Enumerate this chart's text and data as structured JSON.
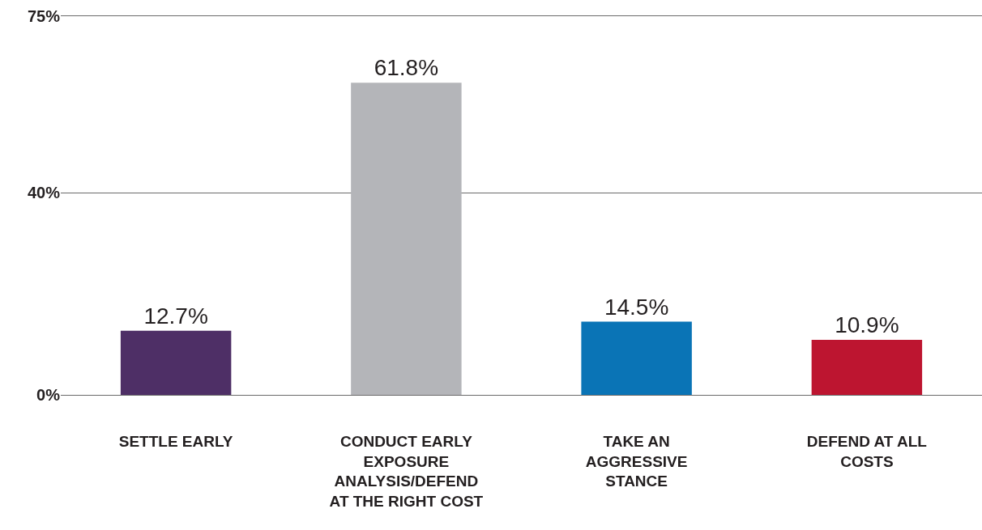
{
  "chart_data": {
    "type": "bar",
    "categories": [
      "SETTLE EARLY",
      "CONDUCT EARLY EXPOSURE ANALYSIS/DEFEND AT THE RIGHT COST",
      "TAKE AN AGGRESSIVE STANCE",
      "DEFEND AT ALL COSTS"
    ],
    "values": [
      12.7,
      61.8,
      14.5,
      10.9
    ],
    "value_labels": [
      "12.7%",
      "61.8%",
      "14.5%",
      "10.9%"
    ],
    "colors": [
      "#4e2f66",
      "#b4b5b9",
      "#0a74b6",
      "#bd1530"
    ],
    "ylim": [
      0,
      75
    ],
    "yticks": [
      {
        "value": 0,
        "label": "0%"
      },
      {
        "value": 40,
        "label": "40%"
      },
      {
        "value": 75,
        "label": "75%"
      }
    ],
    "grid": "y"
  }
}
